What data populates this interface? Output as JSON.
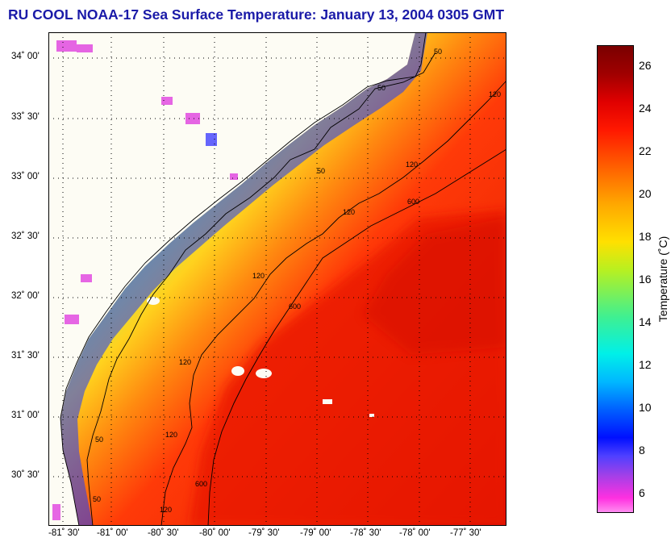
{
  "title": "RU COOL  NOAA-17  Sea Surface Temperature:  January 13, 2004 0305 GMT",
  "lat_ticks": [
    "34˚ 00'",
    "33˚ 30'",
    "33˚ 00'",
    "32˚ 30'",
    "32˚ 00'",
    "31˚ 30'",
    "31˚ 00'",
    "30˚ 30'"
  ],
  "lon_ticks": [
    "-81˚ 30'",
    "-81˚ 00'",
    "-80˚ 30'",
    "-80˚ 00'",
    "-79˚ 30'",
    "-79˚ 00'",
    "-78˚ 30'",
    "-78˚ 00'",
    "-77˚ 30'"
  ],
  "isobath_labels": [
    "50",
    "50",
    "50",
    "50",
    "50",
    "120",
    "120",
    "120",
    "120",
    "120",
    "120",
    "120",
    "600",
    "600",
    "600"
  ],
  "colorbar": {
    "label": "Temperature (˚C)",
    "ticks": [
      "26",
      "24",
      "22",
      "20",
      "18",
      "16",
      "14",
      "12",
      "10",
      "8",
      "6"
    ],
    "range": [
      5,
      27
    ]
  }
}
